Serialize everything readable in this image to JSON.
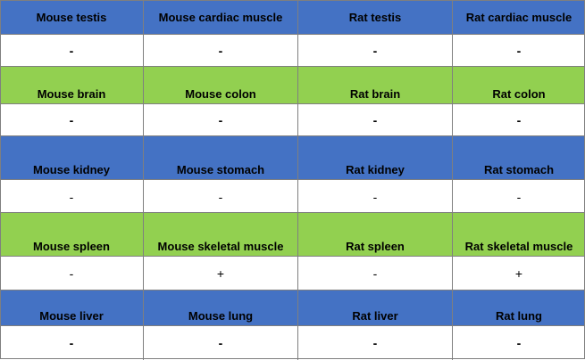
{
  "colors": {
    "blue": "#4472c4",
    "green": "#92d050",
    "white": "#ffffff",
    "border": "#7f7f7f"
  },
  "table": {
    "rows": [
      {
        "kind": "header",
        "band": "blue",
        "cells": [
          "Mouse testis",
          "Mouse cardiac muscle",
          "Rat testis",
          "Rat cardiac muscle"
        ]
      },
      {
        "kind": "value",
        "band": "white",
        "cells": [
          "-",
          "-",
          "-",
          "-"
        ]
      },
      {
        "kind": "header",
        "band": "green",
        "cells": [
          "Mouse brain",
          "Mouse colon",
          "Rat brain",
          "Rat colon"
        ]
      },
      {
        "kind": "value",
        "band": "white",
        "cells": [
          "-",
          "-",
          "-",
          "-"
        ]
      },
      {
        "kind": "header",
        "band": "blue",
        "cells": [
          "Mouse kidney",
          "Mouse stomach",
          "Rat kidney",
          "Rat stomach"
        ]
      },
      {
        "kind": "value",
        "band": "white",
        "cells": [
          "-",
          "-",
          "-",
          "-"
        ]
      },
      {
        "kind": "header",
        "band": "green",
        "cells": [
          "Mouse spleen",
          "Mouse skeletal muscle",
          "Rat spleen",
          "Rat skeletal muscle"
        ]
      },
      {
        "kind": "value",
        "band": "white",
        "cells": [
          "-",
          "+",
          "-",
          "+"
        ]
      },
      {
        "kind": "header",
        "band": "blue",
        "cells": [
          "Mouse liver",
          "Mouse lung",
          "Rat liver",
          "Rat lung"
        ]
      },
      {
        "kind": "value",
        "band": "white",
        "cells": [
          "-",
          "-",
          "-",
          "-"
        ]
      }
    ]
  }
}
